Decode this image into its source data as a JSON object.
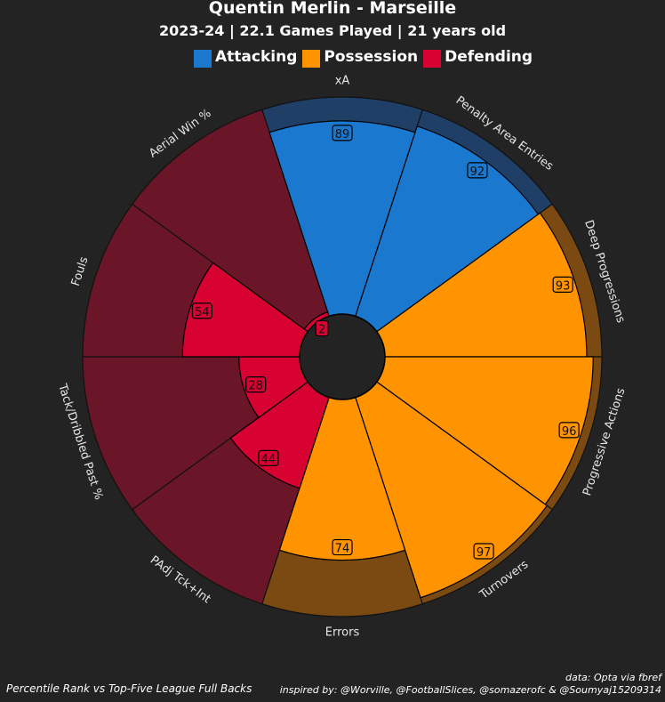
{
  "title": "Quentin Merlin - Marseille",
  "subtitle": "2023-24 | 22.1 Games Played | 21 years old",
  "legend": [
    {
      "label": "Attacking",
      "color": "#1a78cf"
    },
    {
      "label": "Possession",
      "color": "#ff9300"
    },
    {
      "label": "Defending",
      "color": "#d70232"
    }
  ],
  "colors": {
    "background": "#232323",
    "attacking_bg": "#1f3f66",
    "possession_bg": "#7a4a12",
    "defending_bg": "#6a1628"
  },
  "chart_data": {
    "type": "pizza",
    "scale": [
      0,
      100
    ],
    "parameters": [
      {
        "name": "xA",
        "value": 89,
        "group": "Attacking"
      },
      {
        "name": "Penalty Area Entries",
        "value": 92,
        "group": "Attacking"
      },
      {
        "name": "Deep Progressions",
        "value": 93,
        "group": "Possession"
      },
      {
        "name": "Progressive Actions",
        "value": 96,
        "group": "Possession"
      },
      {
        "name": "Turnovers",
        "value": 97,
        "group": "Possession"
      },
      {
        "name": "Errors",
        "value": 74,
        "group": "Possession"
      },
      {
        "name": "PAdj Tck+Int",
        "value": 44,
        "group": "Defending"
      },
      {
        "name": "Tack/Dribbled Past %",
        "value": 28,
        "group": "Defending"
      },
      {
        "name": "Fouls",
        "value": 54,
        "group": "Defending"
      },
      {
        "name": "Aerial Win %",
        "value": 2,
        "group": "Defending"
      }
    ]
  },
  "footer": {
    "left": "Percentile Rank vs Top-Five League Full Backs",
    "right_line1": "data: Opta via fbref",
    "right_line2": "inspired by: @Worville, @FootballSlices, @somazerofc & @Soumyaj15209314"
  }
}
